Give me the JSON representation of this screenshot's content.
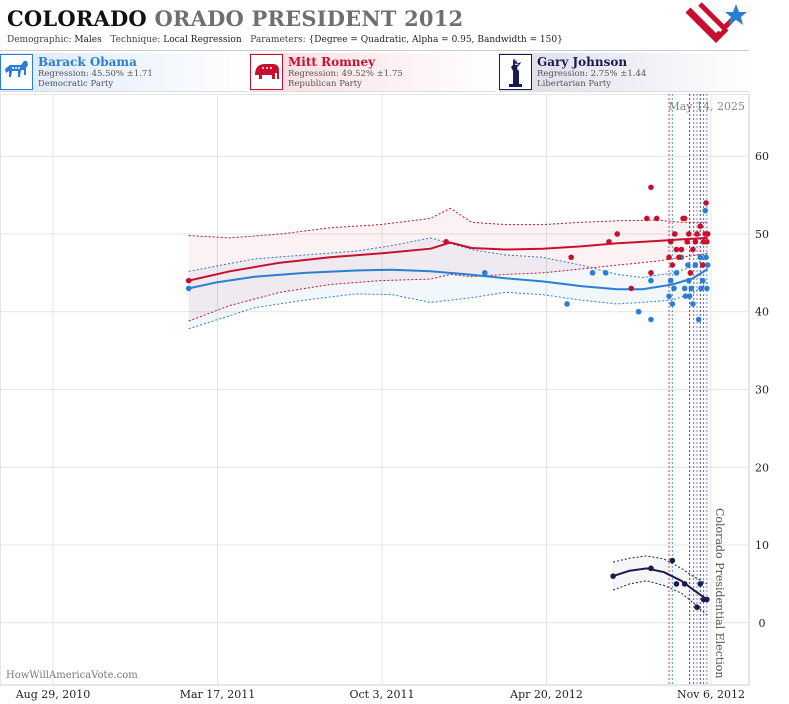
{
  "header": {
    "title_state": "COLORADO",
    "title_rest": "ORADO PRESIDENT 2012",
    "demographic_label": "Demographic:",
    "demographic": "Males",
    "technique_label": "Technique:",
    "technique": "Local Regression",
    "parameters_label": "Parameters:",
    "parameters": "{Degree = Quadratic, Alpha = 0.95, Bandwidth = 150}"
  },
  "candidates": [
    {
      "name": "Barack Obama",
      "regression": "Regression: 45.50% ±1.71",
      "party": "Democratic Party",
      "color": "#2a7fd4",
      "icon": "donkey-icon"
    },
    {
      "name": "Mitt Romney",
      "regression": "Regression: 49.52% ±1.75",
      "party": "Republican Party",
      "color": "#c8102e",
      "icon": "elephant-icon"
    },
    {
      "name": "Gary Johnson",
      "regression": "Regression: 2.75% ±1.44",
      "party": "Libertarian Party",
      "color": "#1a1a4e",
      "icon": "statue-of-liberty-icon"
    }
  ],
  "chart_data": {
    "type": "scatter",
    "date_label": "May 14, 2025",
    "election_label": "Colorado Presidential Election",
    "credit": "HowWillAmericaVote.com",
    "x_ticks": [
      "Aug 29, 2010",
      "Mar 17, 2011",
      "Oct 3, 2011",
      "Apr 20, 2012",
      "Nov 6, 2012"
    ],
    "x_range": [
      "2010-08-29",
      "2012-11-06"
    ],
    "y_ticks": [
      0,
      10,
      20,
      30,
      40,
      50,
      60
    ],
    "ylim": [
      -8,
      68
    ],
    "grid": true,
    "poll_markers": [
      "2012-09-16",
      "2012-09-20",
      "2012-10-11",
      "2012-10-16",
      "2012-10-20",
      "2012-10-24",
      "2012-10-28",
      "2012-11-01"
    ],
    "series": [
      {
        "name": "Barack Obama",
        "color": "#2a7fd4",
        "points": [
          [
            "2011-02-10",
            43
          ],
          [
            "2012-02-05",
            45
          ],
          [
            "2012-05-15",
            41
          ],
          [
            "2012-06-15",
            45
          ],
          [
            "2012-07-01",
            45
          ],
          [
            "2012-08-10",
            40
          ],
          [
            "2012-08-25",
            39
          ],
          [
            "2012-08-25",
            44
          ],
          [
            "2012-09-16",
            42
          ],
          [
            "2012-09-18",
            44
          ],
          [
            "2012-09-20",
            41
          ],
          [
            "2012-09-22",
            43
          ],
          [
            "2012-09-25",
            45
          ],
          [
            "2012-10-01",
            47
          ],
          [
            "2012-10-05",
            43
          ],
          [
            "2012-10-06",
            42
          ],
          [
            "2012-10-09",
            46
          ],
          [
            "2012-10-10",
            44
          ],
          [
            "2012-10-11",
            42
          ],
          [
            "2012-10-13",
            43
          ],
          [
            "2012-10-15",
            41
          ],
          [
            "2012-10-18",
            46
          ],
          [
            "2012-10-22",
            39
          ],
          [
            "2012-10-24",
            47
          ],
          [
            "2012-10-25",
            43
          ],
          [
            "2012-10-27",
            44
          ],
          [
            "2012-10-30",
            53
          ],
          [
            "2012-10-31",
            47
          ],
          [
            "2012-11-01",
            43
          ],
          [
            "2012-11-02",
            46
          ]
        ],
        "trend": [
          [
            "2011-02-10",
            43
          ],
          [
            "2011-03-17",
            43.8
          ],
          [
            "2011-05-01",
            44.5
          ],
          [
            "2011-07-01",
            45
          ],
          [
            "2011-09-01",
            45.3
          ],
          [
            "2011-10-15",
            45.4
          ],
          [
            "2011-12-01",
            45.2
          ],
          [
            "2012-01-15",
            44.8
          ],
          [
            "2012-03-01",
            44.3
          ],
          [
            "2012-04-15",
            43.9
          ],
          [
            "2012-06-01",
            43.3
          ],
          [
            "2012-07-15",
            42.9
          ],
          [
            "2012-08-15",
            42.9
          ],
          [
            "2012-09-20",
            43.5
          ],
          [
            "2012-10-15",
            44.3
          ],
          [
            "2012-11-02",
            45.5
          ]
        ],
        "upper": [
          [
            "2011-02-10",
            45.2
          ],
          [
            "2011-05-01",
            46.8
          ],
          [
            "2011-07-01",
            47.3
          ],
          [
            "2011-09-01",
            47.8
          ],
          [
            "2011-10-15",
            48.5
          ],
          [
            "2011-12-01",
            49.5
          ],
          [
            "2012-01-20",
            48
          ],
          [
            "2012-03-01",
            47.3
          ],
          [
            "2012-04-15",
            47
          ],
          [
            "2012-06-01",
            46
          ],
          [
            "2012-07-15",
            44.8
          ],
          [
            "2012-08-15",
            44.4
          ],
          [
            "2012-09-20",
            45
          ],
          [
            "2012-10-15",
            45.8
          ],
          [
            "2012-11-02",
            47.2
          ]
        ],
        "lower": [
          [
            "2011-02-10",
            37.8
          ],
          [
            "2011-05-01",
            40.5
          ],
          [
            "2011-07-01",
            41.5
          ],
          [
            "2011-09-01",
            42.3
          ],
          [
            "2011-10-15",
            42.2
          ],
          [
            "2011-12-01",
            41.2
          ],
          [
            "2012-01-20",
            41.8
          ],
          [
            "2012-03-01",
            42.5
          ],
          [
            "2012-04-15",
            42.2
          ],
          [
            "2012-06-01",
            41.5
          ],
          [
            "2012-07-15",
            41
          ],
          [
            "2012-08-15",
            41.2
          ],
          [
            "2012-09-20",
            41.5
          ],
          [
            "2012-10-15",
            42.4
          ],
          [
            "2012-11-02",
            43.8
          ]
        ]
      },
      {
        "name": "Mitt Romney",
        "color": "#c8102e",
        "points": [
          [
            "2011-02-10",
            44
          ],
          [
            "2011-12-20",
            49
          ],
          [
            "2012-05-20",
            47
          ],
          [
            "2012-07-05",
            49
          ],
          [
            "2012-07-15",
            50
          ],
          [
            "2012-08-01",
            43
          ],
          [
            "2012-08-20",
            52
          ],
          [
            "2012-08-25",
            56
          ],
          [
            "2012-08-25",
            45
          ],
          [
            "2012-09-01",
            52
          ],
          [
            "2012-09-16",
            47
          ],
          [
            "2012-09-18",
            49
          ],
          [
            "2012-09-20",
            46
          ],
          [
            "2012-09-23",
            50
          ],
          [
            "2012-09-25",
            48
          ],
          [
            "2012-09-28",
            47
          ],
          [
            "2012-10-01",
            48
          ],
          [
            "2012-10-03",
            52
          ],
          [
            "2012-10-05",
            52
          ],
          [
            "2012-10-08",
            49
          ],
          [
            "2012-10-10",
            50
          ],
          [
            "2012-10-12",
            45
          ],
          [
            "2012-10-15",
            48
          ],
          [
            "2012-10-18",
            49
          ],
          [
            "2012-10-20",
            50
          ],
          [
            "2012-10-24",
            51
          ],
          [
            "2012-10-27",
            46
          ],
          [
            "2012-10-28",
            49
          ],
          [
            "2012-10-30",
            50
          ],
          [
            "2012-10-31",
            54
          ],
          [
            "2012-11-01",
            49
          ],
          [
            "2012-11-02",
            50
          ]
        ],
        "trend": [
          [
            "2011-02-10",
            44
          ],
          [
            "2011-04-01",
            45.2
          ],
          [
            "2011-06-01",
            46.3
          ],
          [
            "2011-08-01",
            47
          ],
          [
            "2011-10-01",
            47.5
          ],
          [
            "2011-12-01",
            48.1
          ],
          [
            "2011-12-25",
            48.9
          ],
          [
            "2012-01-20",
            48.2
          ],
          [
            "2012-03-01",
            48
          ],
          [
            "2012-04-15",
            48.1
          ],
          [
            "2012-06-01",
            48.4
          ],
          [
            "2012-07-15",
            48.8
          ],
          [
            "2012-09-01",
            49.1
          ],
          [
            "2012-10-01",
            49.3
          ],
          [
            "2012-11-02",
            49.5
          ]
        ],
        "upper": [
          [
            "2011-02-10",
            49.8
          ],
          [
            "2011-04-01",
            49.5
          ],
          [
            "2011-06-01",
            50
          ],
          [
            "2011-08-01",
            50.8
          ],
          [
            "2011-10-01",
            51.2
          ],
          [
            "2011-12-01",
            52
          ],
          [
            "2011-12-25",
            53.3
          ],
          [
            "2012-01-20",
            51.5
          ],
          [
            "2012-03-01",
            51.2
          ],
          [
            "2012-04-15",
            51.2
          ],
          [
            "2012-06-01",
            51.5
          ],
          [
            "2012-07-15",
            51.7
          ],
          [
            "2012-09-01",
            51.8
          ],
          [
            "2012-10-01",
            51.5
          ],
          [
            "2012-11-02",
            51.5
          ]
        ],
        "lower": [
          [
            "2011-02-10",
            38.8
          ],
          [
            "2011-04-01",
            40.8
          ],
          [
            "2011-06-01",
            42.5
          ],
          [
            "2011-08-01",
            43.5
          ],
          [
            "2011-10-01",
            44
          ],
          [
            "2011-12-01",
            44.2
          ],
          [
            "2011-12-25",
            44.8
          ],
          [
            "2012-01-20",
            44.5
          ],
          [
            "2012-03-01",
            44.8
          ],
          [
            "2012-04-15",
            45
          ],
          [
            "2012-06-01",
            45.5
          ],
          [
            "2012-07-15",
            46
          ],
          [
            "2012-09-01",
            46.5
          ],
          [
            "2012-10-01",
            47
          ],
          [
            "2012-11-02",
            47.5
          ]
        ]
      },
      {
        "name": "Gary Johnson",
        "color": "#1a1a4e",
        "points": [
          [
            "2012-07-10",
            6
          ],
          [
            "2012-08-25",
            7
          ],
          [
            "2012-09-20",
            8
          ],
          [
            "2012-09-25",
            5
          ],
          [
            "2012-10-05",
            5
          ],
          [
            "2012-10-20",
            2
          ],
          [
            "2012-10-24",
            5
          ],
          [
            "2012-10-28",
            3
          ],
          [
            "2012-11-01",
            3
          ]
        ],
        "trend": [
          [
            "2012-07-10",
            6
          ],
          [
            "2012-07-30",
            6.7
          ],
          [
            "2012-08-20",
            7
          ],
          [
            "2012-09-10",
            6.5
          ],
          [
            "2012-10-01",
            5.4
          ],
          [
            "2012-10-15",
            4.3
          ],
          [
            "2012-11-01",
            3
          ]
        ],
        "upper": [
          [
            "2012-07-10",
            7.8
          ],
          [
            "2012-07-30",
            8.3
          ],
          [
            "2012-08-20",
            8.6
          ],
          [
            "2012-09-10",
            8.2
          ],
          [
            "2012-10-01",
            7
          ],
          [
            "2012-10-15",
            6
          ],
          [
            "2012-11-01",
            5
          ]
        ],
        "lower": [
          [
            "2012-07-10",
            4.2
          ],
          [
            "2012-07-30",
            5
          ],
          [
            "2012-08-20",
            5.4
          ],
          [
            "2012-09-10",
            4.8
          ],
          [
            "2012-10-01",
            3.8
          ],
          [
            "2012-10-15",
            2.6
          ],
          [
            "2012-11-01",
            1
          ]
        ]
      }
    ]
  }
}
